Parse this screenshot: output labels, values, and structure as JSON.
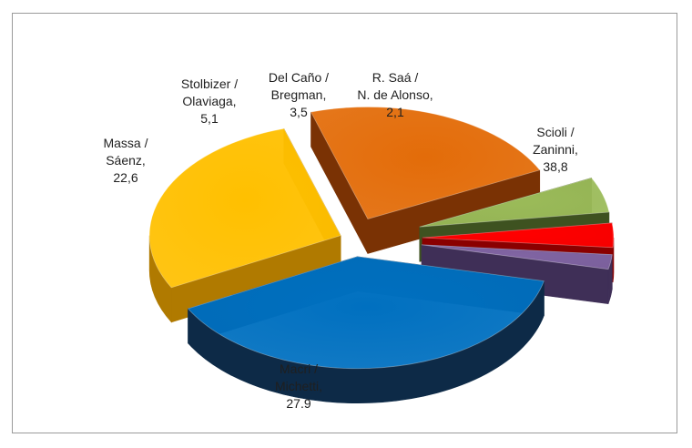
{
  "chart_data": {
    "type": "pie",
    "style": "3d-exploded",
    "slices": [
      {
        "label_lines": [
          "Scioli /",
          "Zaninni,",
          "38,8"
        ],
        "value": 38.8,
        "color": "#0070C0",
        "side_color": "#0D2A47"
      },
      {
        "label_lines": [
          "Macri /",
          "Michetti,",
          "27.9"
        ],
        "value": 27.9,
        "color": "#FFC000",
        "side_color": "#B07A00"
      },
      {
        "label_lines": [
          "Massa /",
          "Sáenz,",
          "22,6"
        ],
        "value": 22.6,
        "color": "#E36C09",
        "side_color": "#7A3204"
      },
      {
        "label_lines": [
          "Stolbizer /",
          "Olaviaga,",
          "5,1"
        ],
        "value": 5.1,
        "color": "#9BBB59",
        "side_color": "#3E5220"
      },
      {
        "label_lines": [
          "Del Caño /",
          "Bregman,",
          "3,5"
        ],
        "value": 3.5,
        "color": "#FF0000",
        "side_color": "#8A0000"
      },
      {
        "label_lines": [
          "R. Saá /",
          "N. de Alonso,",
          "2,1"
        ],
        "value": 2.1,
        "color": "#8064A2",
        "side_color": "#3F2F57"
      }
    ]
  }
}
